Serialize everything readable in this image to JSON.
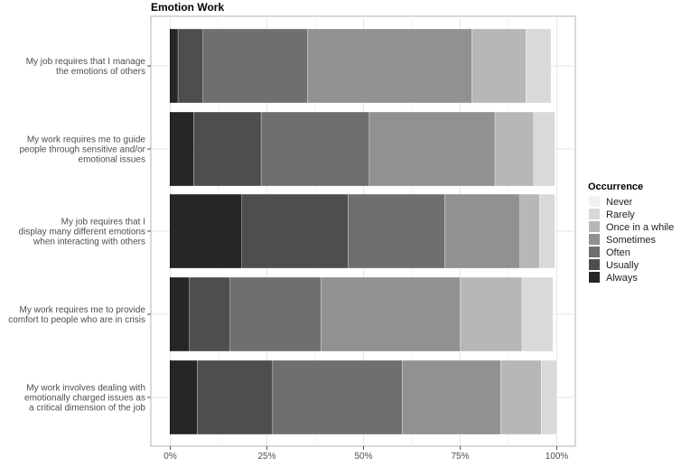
{
  "chart_data": {
    "type": "bar",
    "orientation": "horizontal",
    "stacked": true,
    "title": "Emotion Work",
    "xlabel": "",
    "ylabel": "",
    "xlim": [
      0,
      100
    ],
    "x_ticks": [
      "0%",
      "25%",
      "50%",
      "75%",
      "100%"
    ],
    "x_tick_values": [
      0,
      25,
      50,
      75,
      100
    ],
    "grid": true,
    "legend_position": "right",
    "legend_title": "Occurrence",
    "categories": [
      [
        "My job requires that I manage",
        "the emotions of others"
      ],
      [
        "My work requires me to guide",
        "people through sensitive and/or",
        "emotional issues"
      ],
      [
        "My job requires that I",
        "display many different emotions",
        "when interacting with others"
      ],
      [
        "My work requires me to provide",
        "comfort to people who are in crisis"
      ],
      [
        "My work involves dealing with",
        "emotionally charged issues as",
        "a critical dimension of the job"
      ]
    ],
    "series": [
      {
        "name": "Always",
        "color": "#262626",
        "values": [
          2,
          6,
          18.5,
          5,
          7
        ]
      },
      {
        "name": "Usually",
        "color": "#4e4e4e",
        "values": [
          6.5,
          17.5,
          27.5,
          10.5,
          19.5
        ]
      },
      {
        "name": "Often",
        "color": "#6f6f6f",
        "values": [
          27,
          28,
          25,
          23.5,
          33.5
        ]
      },
      {
        "name": "Sometimes",
        "color": "#919191",
        "values": [
          42.5,
          32.5,
          19.5,
          36,
          25.5
        ]
      },
      {
        "name": "Once in a while",
        "color": "#b7b7b7",
        "values": [
          14,
          10,
          5,
          16,
          10.5
        ]
      },
      {
        "name": "Rarely",
        "color": "#d9d9d9",
        "values": [
          6.5,
          5.5,
          4,
          8,
          4
        ]
      },
      {
        "name": "Never",
        "color": "#f1f1f1",
        "values": [
          0,
          0,
          0,
          0,
          0
        ]
      }
    ],
    "legend_order": [
      "Never",
      "Rarely",
      "Once in a while",
      "Sometimes",
      "Often",
      "Usually",
      "Always"
    ]
  }
}
